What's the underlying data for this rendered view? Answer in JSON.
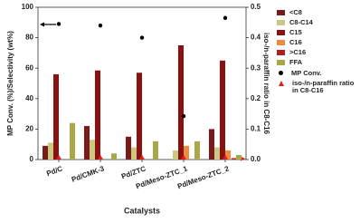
{
  "chart_data": {
    "type": "bar",
    "categories": [
      "Pd/C",
      "Pd/CMK-3",
      "Pd/ZTC",
      "Pd/Meso-ZTC_1",
      "Pd/Meso-ZTC_2"
    ],
    "series": [
      {
        "name": "<C8",
        "color": "#7a1a1a",
        "values": [
          9,
          22,
          15,
          0,
          20
        ]
      },
      {
        "name": "C8-C14",
        "color": "#c9c982",
        "values": [
          11,
          13,
          8,
          6,
          8
        ]
      },
      {
        "name": "C15",
        "color": "#8b1010",
        "values": [
          56,
          58.5,
          57,
          75,
          65
        ]
      },
      {
        "name": "C16",
        "color": "#f08a3c",
        "values": [
          0,
          0,
          0,
          9,
          6
        ]
      },
      {
        "name": ">C16",
        "color": "#b02020",
        "values": [
          0,
          0,
          0,
          0,
          0
        ]
      },
      {
        "name": "FFA",
        "color": "#a8a848",
        "values": [
          24,
          4,
          12,
          12,
          3
        ]
      },
      {
        "name": "MP Conv.",
        "color": "#000000",
        "marker": "circle",
        "values": [
          89,
          88,
          80,
          28.5,
          93
        ]
      },
      {
        "name": "iso-/n-paraffin ratio in C8-C16",
        "color": "#e02020",
        "marker": "triangle",
        "axis": "y2",
        "values": [
          0.005,
          0.005,
          0.005,
          0.005,
          0.005
        ]
      }
    ],
    "x_label": "Catalysts",
    "y_label": "MP Conv. (%)/Selectivity (wt%)",
    "y2_label": "iso-/n-paraffin ratio in C8-C16",
    "ylim": [
      0,
      100
    ],
    "yticks": [
      0,
      20,
      40,
      60,
      80,
      100
    ],
    "y2lim": [
      0,
      0.5
    ],
    "y2ticks": [
      {
        "value": 0,
        "label": "0.0"
      },
      0.1,
      0.2,
      0.3,
      0.4,
      0.5
    ]
  }
}
